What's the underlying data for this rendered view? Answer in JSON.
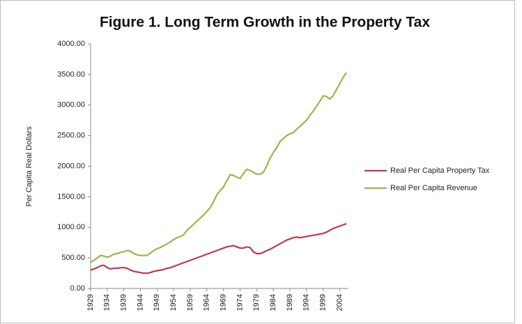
{
  "chart_data": {
    "type": "line",
    "title": "Figure 1.  Long Term Growth in the Property Tax",
    "y_label": "Per Capita Real Dollars",
    "x": [
      1929,
      1930,
      1931,
      1932,
      1933,
      1934,
      1935,
      1936,
      1937,
      1938,
      1939,
      1940,
      1941,
      1942,
      1943,
      1944,
      1945,
      1946,
      1947,
      1948,
      1949,
      1950,
      1951,
      1952,
      1953,
      1954,
      1955,
      1956,
      1957,
      1958,
      1959,
      1960,
      1961,
      1962,
      1963,
      1964,
      1965,
      1966,
      1967,
      1968,
      1969,
      1970,
      1971,
      1972,
      1973,
      1974,
      1975,
      1976,
      1977,
      1978,
      1979,
      1980,
      1981,
      1982,
      1983,
      1984,
      1985,
      1986,
      1987,
      1988,
      1989,
      1990,
      1991,
      1992,
      1993,
      1994,
      1995,
      1996,
      1997,
      1998,
      1999,
      2000,
      2001,
      2002,
      2003,
      2004,
      2005,
      2006
    ],
    "series": [
      {
        "name": "Real Per Capita Property Tax",
        "color": "#c0364b",
        "values": [
          300,
          320,
          340,
          370,
          380,
          340,
          320,
          330,
          330,
          340,
          340,
          330,
          300,
          280,
          270,
          260,
          250,
          250,
          260,
          280,
          290,
          300,
          310,
          330,
          340,
          360,
          380,
          400,
          420,
          440,
          460,
          480,
          500,
          520,
          540,
          560,
          580,
          600,
          620,
          640,
          660,
          680,
          690,
          700,
          680,
          660,
          660,
          680,
          670,
          600,
          570,
          570,
          590,
          620,
          640,
          670,
          700,
          730,
          760,
          790,
          810,
          830,
          840,
          830,
          840,
          850,
          860,
          870,
          880,
          890,
          900,
          920,
          950,
          980,
          1000,
          1020,
          1040,
          1060
        ]
      },
      {
        "name": "Real Per Capita Revenue",
        "color": "#9db34a",
        "values": [
          430,
          460,
          500,
          540,
          530,
          510,
          530,
          560,
          570,
          590,
          600,
          620,
          610,
          570,
          550,
          540,
          540,
          540,
          580,
          620,
          650,
          670,
          700,
          730,
          760,
          800,
          830,
          850,
          880,
          950,
          1000,
          1050,
          1100,
          1150,
          1200,
          1260,
          1320,
          1420,
          1530,
          1600,
          1660,
          1760,
          1860,
          1850,
          1820,
          1800,
          1880,
          1950,
          1930,
          1900,
          1870,
          1870,
          1900,
          2000,
          2130,
          2220,
          2300,
          2400,
          2450,
          2500,
          2530,
          2550,
          2600,
          2650,
          2700,
          2750,
          2830,
          2900,
          2980,
          3060,
          3150,
          3140,
          3100,
          3150,
          3250,
          3350,
          3450,
          3530
        ]
      }
    ],
    "xlim": [
      1929,
      2006
    ],
    "xticks": [
      1929,
      1934,
      1939,
      1944,
      1949,
      1954,
      1959,
      1964,
      1969,
      1974,
      1979,
      1984,
      1989,
      1994,
      1999,
      2004
    ],
    "ylim": [
      0,
      4000
    ],
    "yticks": [
      {
        "value": 0,
        "label": "0.00"
      },
      {
        "value": 500,
        "label": "500.00"
      },
      {
        "value": 1000,
        "label": "1000.00"
      },
      {
        "value": 1500,
        "label": "1500.00"
      },
      {
        "value": 2000,
        "label": "2000.00"
      },
      {
        "value": 2500,
        "label": "2500.00"
      },
      {
        "value": 3000,
        "label": "3000.00"
      },
      {
        "value": 3500,
        "label": "3500.00"
      },
      {
        "value": 4000,
        "label": "4000.00"
      }
    ],
    "grid": false,
    "legend": "right"
  }
}
